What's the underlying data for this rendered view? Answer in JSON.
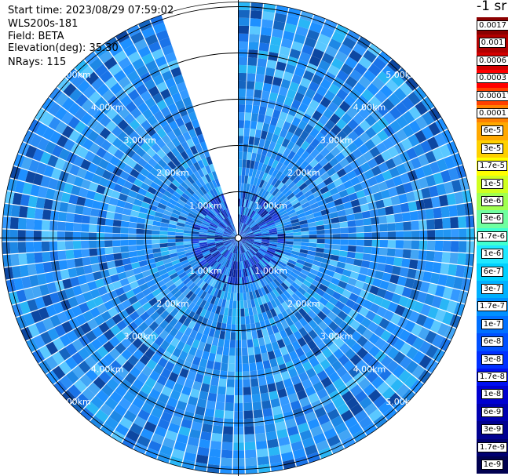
{
  "header": {
    "start_time": "Start time: 2023/08/29 07:59:02",
    "instrument": "WLS200s-181",
    "field": "Field: BETA",
    "elevation": "Elevation(deg): 35.30",
    "nrays": "NRays: 115"
  },
  "colorbar": {
    "title": "-1 sr",
    "labels": [
      "0.0017",
      "0.001",
      "0.0006",
      "0.0003",
      "0.00017",
      "0.0001",
      "6e-5",
      "3e-5",
      "1.7e-5",
      "1e-5",
      "6e-6",
      "3e-6",
      "1.7e-6",
      "1e-6",
      "6e-7",
      "3e-7",
      "1.7e-7",
      "1e-7",
      "6e-8",
      "3e-8",
      "1.7e-8",
      "1e-8",
      "6e-9",
      "3e-9",
      "1.7e-9",
      "1e-9"
    ],
    "colors": [
      "#8b0000",
      "#b00000",
      "#d40000",
      "#ff0000",
      "#ff4000",
      "#ff8000",
      "#ffa800",
      "#ffd000",
      "#ffff00",
      "#d0ff20",
      "#a0ff50",
      "#70ffa0",
      "#40ffd0",
      "#20e8ff",
      "#00d0ff",
      "#00b0ff",
      "#0090ff",
      "#0070ff",
      "#0050ff",
      "#0030ff",
      "#0010f0",
      "#0000d0",
      "#0000b0",
      "#000090",
      "#000070",
      "#000050"
    ]
  },
  "chart_data": {
    "type": "heatmap",
    "subtype": "polar PPI scan",
    "rings_km": [
      1.0,
      2.0,
      3.0,
      4.0,
      5.0
    ],
    "ring_labels": [
      "1.00km",
      "2.00km",
      "3.00km",
      "4.00km",
      "5.00km"
    ],
    "max_range_km": 5.1,
    "n_rays": 115,
    "missing_sector_deg": [
      -18,
      0
    ],
    "colorscale": "jet, log",
    "value_range": [
      1e-09,
      0.0017
    ],
    "dominant_value_range": [
      1e-08,
      3e-07
    ]
  }
}
